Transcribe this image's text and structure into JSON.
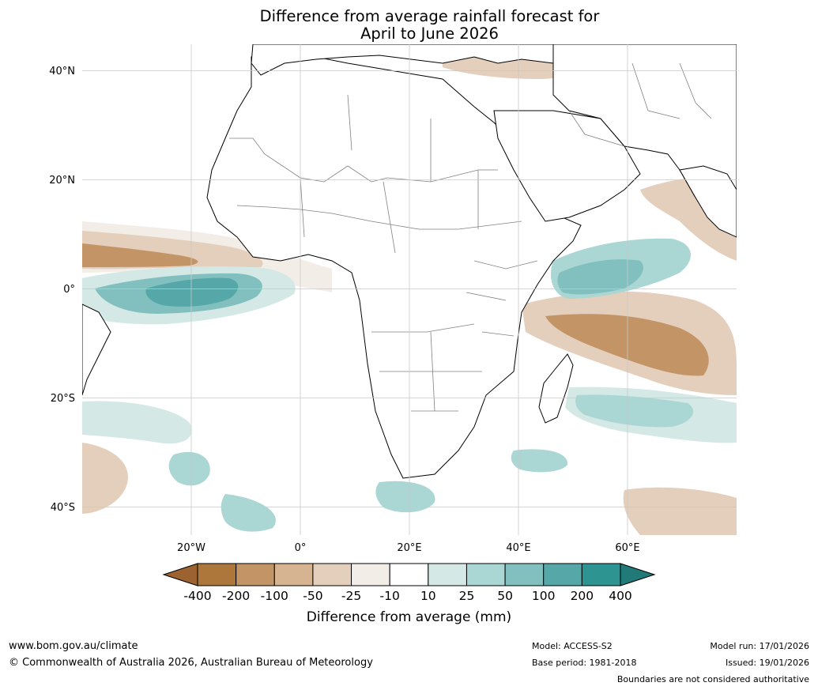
{
  "title": {
    "line1": "Difference from average rainfall forecast for",
    "line2": "April to June 2026"
  },
  "map": {
    "lat_labels": [
      "40°N",
      "20°N",
      "0°",
      "20°S",
      "40°S"
    ],
    "lon_labels": [
      "20°W",
      "0°",
      "20°E",
      "40°E",
      "60°E"
    ],
    "extent": {
      "lon_min": -40,
      "lon_max": 80,
      "lat_min": -45,
      "lat_max": 45
    },
    "land_color": "#ffffff",
    "grid_color": "#c8c8c8"
  },
  "colorbar": {
    "title": "Difference from average (mm)",
    "tick_labels": [
      "-400",
      "-200",
      "-100",
      "-50",
      "-25",
      "-10",
      "10",
      "25",
      "50",
      "100",
      "200",
      "400"
    ],
    "colors": [
      "#9c6330",
      "#ad773c",
      "#c29466",
      "#d6b391",
      "#e4cfbc",
      "#f2ede6",
      "#ffffff",
      "#d4e8e6",
      "#aad6d4",
      "#82c0bf",
      "#55a8a7",
      "#2e9492",
      "#217a78"
    ]
  },
  "footer": {
    "website": "www.bom.gov.au/climate",
    "copyright": "© Commonwealth of Australia 2026, Australian Bureau of Meteorology",
    "model": "Model: ACCESS-S2",
    "base_period": "Base period: 1981-2018",
    "model_run": "Model run: 17/01/2026",
    "issued": "Issued: 19/01/2026",
    "disclaimer": "Boundaries are not considered authoritative"
  }
}
